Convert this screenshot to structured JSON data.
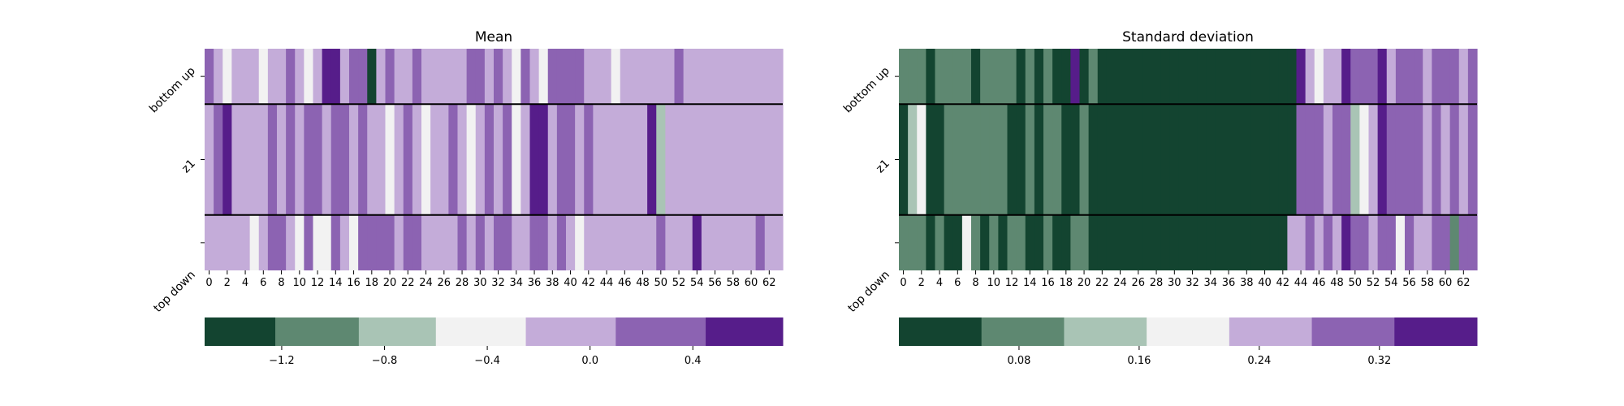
{
  "palette": [
    "#134430",
    "#5e8871",
    "#a9c4b5",
    "#f2f2f2",
    "#c4acd9",
    "#8c63b2",
    "#561d8a"
  ],
  "chart_data": [
    {
      "type": "heatmap",
      "title": "Mean",
      "rows": [
        "bottom up",
        "z1",
        "top down"
      ],
      "x_tick_labels": [
        "0",
        "2",
        "4",
        "6",
        "8",
        "10",
        "12",
        "14",
        "16",
        "18",
        "20",
        "22",
        "24",
        "26",
        "28",
        "30",
        "32",
        "34",
        "36",
        "38",
        "40",
        "42",
        "44",
        "46",
        "48",
        "50",
        "52",
        "54",
        "56",
        "58",
        "60",
        "62"
      ],
      "colorbar": {
        "bins": [
          -1.5,
          -1.225,
          -0.9,
          -0.6,
          -0.25,
          0.1,
          0.45,
          0.75
        ],
        "tick_values": [
          -1.2,
          -0.8,
          -0.4,
          0.0,
          0.4
        ],
        "tick_labels": [
          "−1.2",
          "−0.8",
          "−0.4",
          "0.0",
          "0.4"
        ]
      },
      "values": [
        [
          0.25,
          -0.1,
          -0.4,
          -0.1,
          -0.1,
          -0.1,
          -0.4,
          -0.1,
          -0.1,
          0.25,
          -0.1,
          -0.6,
          -0.1,
          0.6,
          0.6,
          -0.1,
          0.25,
          0.25,
          -1.4,
          -0.1,
          0.25,
          -0.1,
          -0.1,
          0.25,
          -0.1,
          -0.1,
          -0.1,
          -0.1,
          -0.1,
          0.25,
          0.25,
          -0.1,
          0.25,
          -0.1,
          -0.4,
          0.25,
          -0.1,
          -0.4,
          0.25,
          0.25,
          0.25,
          0.25,
          -0.1,
          -0.1,
          -0.1,
          -0.4,
          -0.1,
          -0.1,
          -0.1,
          -0.1,
          -0.1,
          -0.1,
          0.25,
          -0.1,
          -0.1,
          -0.1,
          -0.1,
          -0.1,
          -0.1,
          -0.1,
          -0.1,
          -0.1,
          -0.1,
          -0.1
        ],
        [
          -0.1,
          0.25,
          0.6,
          -0.1,
          -0.1,
          -0.1,
          -0.1,
          0.25,
          -0.1,
          0.25,
          -0.1,
          0.25,
          0.25,
          -0.1,
          0.25,
          0.25,
          -0.1,
          0.25,
          -0.1,
          -0.1,
          -0.4,
          -0.1,
          0.25,
          -0.1,
          -0.4,
          -0.1,
          -0.1,
          0.25,
          -0.1,
          -0.4,
          -0.1,
          0.25,
          -0.1,
          0.25,
          -0.4,
          -0.1,
          0.6,
          0.6,
          -0.1,
          0.25,
          0.25,
          -0.1,
          0.25,
          -0.1,
          -0.1,
          -0.1,
          -0.1,
          -0.1,
          -0.1,
          0.6,
          -0.9,
          -0.1,
          -0.1,
          -0.1,
          -0.1,
          -0.1,
          -0.1,
          -0.1,
          -0.1,
          -0.1,
          -0.1,
          -0.1,
          -0.1,
          -0.1
        ],
        [
          -0.1,
          -0.1,
          -0.1,
          -0.1,
          -0.1,
          -0.4,
          -0.1,
          0.25,
          0.25,
          -0.1,
          -0.4,
          0.25,
          -0.4,
          -0.4,
          0.25,
          -0.1,
          -0.4,
          0.25,
          0.25,
          0.25,
          0.25,
          -0.1,
          0.25,
          0.25,
          -0.1,
          -0.1,
          -0.1,
          -0.1,
          0.25,
          -0.1,
          0.25,
          -0.1,
          0.25,
          0.25,
          -0.1,
          -0.1,
          0.25,
          0.25,
          -0.1,
          0.25,
          -0.1,
          -0.4,
          -0.1,
          -0.1,
          -0.1,
          -0.1,
          -0.1,
          -0.1,
          -0.1,
          -0.1,
          0.25,
          -0.1,
          -0.1,
          -0.1,
          0.6,
          -0.1,
          -0.1,
          -0.1,
          -0.1,
          -0.1,
          -0.1,
          0.25,
          -0.1,
          -0.1
        ]
      ]
    },
    {
      "type": "heatmap",
      "title": "Standard deviation",
      "rows": [
        "bottom up",
        "z1",
        "top down"
      ],
      "x_tick_labels": [
        "0",
        "2",
        "4",
        "6",
        "8",
        "10",
        "12",
        "14",
        "16",
        "18",
        "20",
        "22",
        "24",
        "26",
        "28",
        "30",
        "32",
        "34",
        "36",
        "38",
        "40",
        "42",
        "44",
        "46",
        "48",
        "50",
        "52",
        "54",
        "56",
        "58",
        "60",
        "62"
      ],
      "colorbar": {
        "bins": [
          0.0,
          0.055,
          0.11,
          0.165,
          0.22,
          0.275,
          0.33,
          0.385
        ],
        "tick_values": [
          0.08,
          0.16,
          0.24,
          0.32
        ],
        "tick_labels": [
          "0.08",
          "0.16",
          "0.24",
          "0.32"
        ]
      },
      "values": [
        [
          0.08,
          0.08,
          0.08,
          0.03,
          0.08,
          0.08,
          0.08,
          0.08,
          0.03,
          0.08,
          0.08,
          0.08,
          0.08,
          0.03,
          0.08,
          0.03,
          0.08,
          0.03,
          0.03,
          0.35,
          0.03,
          0.08,
          0.03,
          0.03,
          0.03,
          0.03,
          0.03,
          0.03,
          0.03,
          0.03,
          0.03,
          0.03,
          0.03,
          0.03,
          0.03,
          0.03,
          0.03,
          0.03,
          0.03,
          0.03,
          0.03,
          0.03,
          0.03,
          0.03,
          0.35,
          0.25,
          0.19,
          0.25,
          0.25,
          0.35,
          0.3,
          0.3,
          0.3,
          0.35,
          0.25,
          0.3,
          0.3,
          0.3,
          0.25,
          0.3,
          0.3,
          0.3,
          0.25,
          0.3
        ],
        [
          0.03,
          0.13,
          0.19,
          0.03,
          0.03,
          0.08,
          0.08,
          0.08,
          0.08,
          0.08,
          0.08,
          0.08,
          0.03,
          0.03,
          0.08,
          0.03,
          0.08,
          0.08,
          0.03,
          0.03,
          0.08,
          0.03,
          0.03,
          0.03,
          0.03,
          0.03,
          0.03,
          0.03,
          0.03,
          0.03,
          0.03,
          0.03,
          0.03,
          0.03,
          0.03,
          0.03,
          0.03,
          0.03,
          0.03,
          0.03,
          0.03,
          0.03,
          0.03,
          0.03,
          0.3,
          0.3,
          0.3,
          0.25,
          0.3,
          0.3,
          0.13,
          0.19,
          0.25,
          0.35,
          0.3,
          0.3,
          0.3,
          0.3,
          0.25,
          0.3,
          0.25,
          0.3,
          0.25,
          0.3
        ],
        [
          0.08,
          0.08,
          0.08,
          0.03,
          0.08,
          0.03,
          0.03,
          0.19,
          0.08,
          0.03,
          0.08,
          0.03,
          0.08,
          0.08,
          0.03,
          0.03,
          0.08,
          0.03,
          0.03,
          0.08,
          0.08,
          0.03,
          0.03,
          0.03,
          0.03,
          0.03,
          0.03,
          0.03,
          0.03,
          0.03,
          0.03,
          0.03,
          0.03,
          0.03,
          0.03,
          0.03,
          0.03,
          0.03,
          0.03,
          0.03,
          0.03,
          0.03,
          0.03,
          0.25,
          0.25,
          0.3,
          0.25,
          0.3,
          0.25,
          0.35,
          0.3,
          0.3,
          0.25,
          0.3,
          0.3,
          0.19,
          0.3,
          0.25,
          0.25,
          0.3,
          0.3,
          0.08,
          0.3,
          0.3
        ]
      ]
    }
  ]
}
